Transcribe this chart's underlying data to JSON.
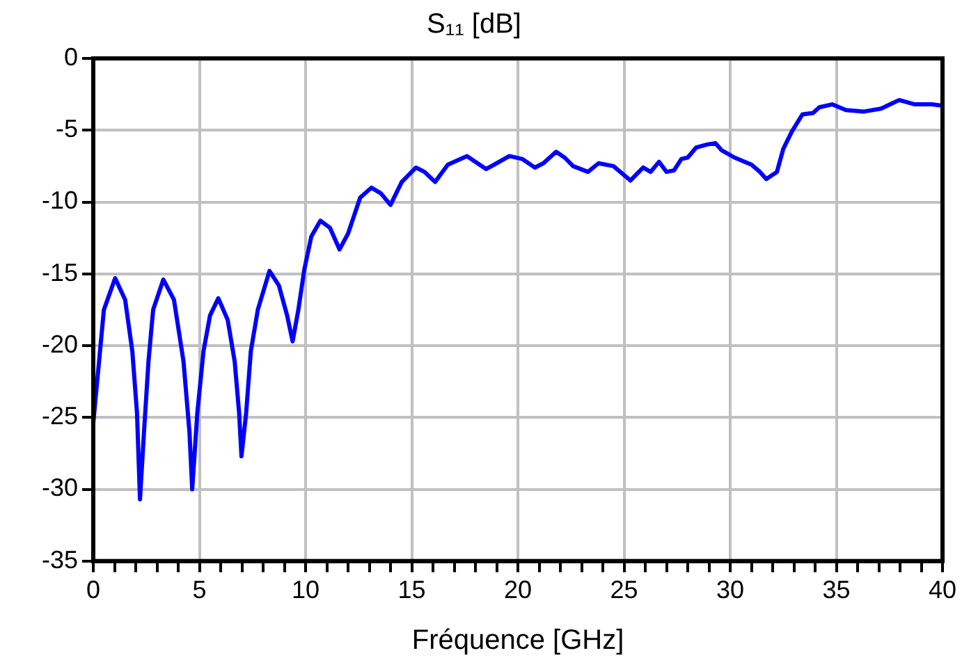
{
  "chart_data": {
    "type": "line",
    "title": "S₁₁ [dB]",
    "xlabel": "Fréquence [GHz]",
    "series": [
      {
        "color": "#0000ff",
        "x": [
          0,
          0.5,
          1.03,
          1.5,
          1.84,
          2.06,
          2.2,
          2.39,
          2.6,
          2.82,
          3.3,
          3.8,
          4.25,
          4.53,
          4.66,
          4.9,
          5.19,
          5.5,
          5.89,
          6.33,
          6.66,
          6.87,
          6.98,
          7.2,
          7.42,
          7.75,
          8.3,
          8.74,
          9.13,
          9.39,
          9.66,
          9.94,
          10.27,
          10.7,
          11.15,
          11.6,
          12.0,
          12.57,
          13.1,
          13.55,
          14.0,
          14.53,
          15.2,
          15.6,
          16.1,
          16.7,
          17.6,
          18.0,
          18.5,
          19.0,
          19.6,
          20.2,
          20.8,
          21.2,
          21.8,
          22.2,
          22.6,
          23.3,
          23.8,
          24.5,
          25.3,
          25.9,
          26.25,
          26.65,
          27.0,
          27.35,
          27.7,
          28.0,
          28.4,
          28.9,
          29.3,
          29.6,
          30.2,
          31.0,
          31.4,
          31.7,
          32.2,
          32.5,
          32.9,
          33.4,
          33.9,
          34.2,
          34.8,
          35.45,
          36.3,
          37.1,
          37.96,
          38.7,
          39.5,
          40
        ],
        "values": [
          -25.4,
          -17.5,
          -15.3,
          -16.8,
          -20.4,
          -24.7,
          -30.7,
          -26.0,
          -21.1,
          -17.5,
          -15.4,
          -16.8,
          -21.1,
          -26.0,
          -30.0,
          -24.7,
          -20.4,
          -17.9,
          -16.7,
          -18.2,
          -21.1,
          -24.7,
          -27.7,
          -24.7,
          -20.4,
          -17.5,
          -14.8,
          -15.8,
          -17.9,
          -19.7,
          -17.5,
          -14.7,
          -12.4,
          -11.3,
          -11.8,
          -13.3,
          -12.2,
          -9.7,
          -9.0,
          -9.4,
          -10.2,
          -8.6,
          -7.6,
          -7.9,
          -8.6,
          -7.4,
          -6.8,
          -7.2,
          -7.7,
          -7.3,
          -6.8,
          -7.0,
          -7.6,
          -7.3,
          -6.5,
          -6.9,
          -7.5,
          -7.9,
          -7.3,
          -7.5,
          -8.5,
          -7.6,
          -7.9,
          -7.2,
          -7.9,
          -7.8,
          -7.0,
          -6.9,
          -6.2,
          -6.0,
          -5.9,
          -6.4,
          -6.9,
          -7.4,
          -7.9,
          -8.4,
          -7.9,
          -6.3,
          -5.1,
          -3.9,
          -3.8,
          -3.4,
          -3.2,
          -3.6,
          -3.7,
          -3.5,
          -2.9,
          -3.2,
          -3.2,
          -3.3
        ]
      }
    ],
    "xlim": [
      0,
      40
    ],
    "xticks": [
      0,
      {
        "value": 1,
        "label": null
      },
      {
        "value": 2,
        "label": null
      },
      {
        "value": 3,
        "label": null
      },
      {
        "value": 4,
        "label": null
      },
      5,
      {
        "value": 6,
        "label": null
      },
      {
        "value": 7,
        "label": null
      },
      {
        "value": 8,
        "label": null
      },
      {
        "value": 9,
        "label": null
      },
      10,
      {
        "value": 11,
        "label": null
      },
      {
        "value": 12,
        "label": null
      },
      {
        "value": 13,
        "label": null
      },
      {
        "value": 14,
        "label": null
      },
      15,
      {
        "value": 16,
        "label": null
      },
      {
        "value": 17,
        "label": null
      },
      {
        "value": 18,
        "label": null
      },
      {
        "value": 19,
        "label": null
      },
      20,
      {
        "value": 21,
        "label": null
      },
      {
        "value": 22,
        "label": null
      },
      {
        "value": 23,
        "label": null
      },
      {
        "value": 24,
        "label": null
      },
      25,
      {
        "value": 26,
        "label": null
      },
      {
        "value": 27,
        "label": null
      },
      {
        "value": 28,
        "label": null
      },
      {
        "value": 29,
        "label": null
      },
      30,
      {
        "value": 31,
        "label": null
      },
      {
        "value": 32,
        "label": null
      },
      {
        "value": 33,
        "label": null
      },
      {
        "value": 34,
        "label": null
      },
      35,
      {
        "value": 36,
        "label": null
      },
      {
        "value": 37,
        "label": null
      },
      {
        "value": 38,
        "label": null
      },
      {
        "value": 39,
        "label": null
      },
      40
    ],
    "ylim": [
      -35,
      0
    ],
    "yticks": [
      -35,
      -30,
      -25,
      -20,
      -15,
      -10,
      -5,
      0
    ],
    "grid": true,
    "legend": false,
    "marker": "none",
    "line_style": "solid"
  }
}
